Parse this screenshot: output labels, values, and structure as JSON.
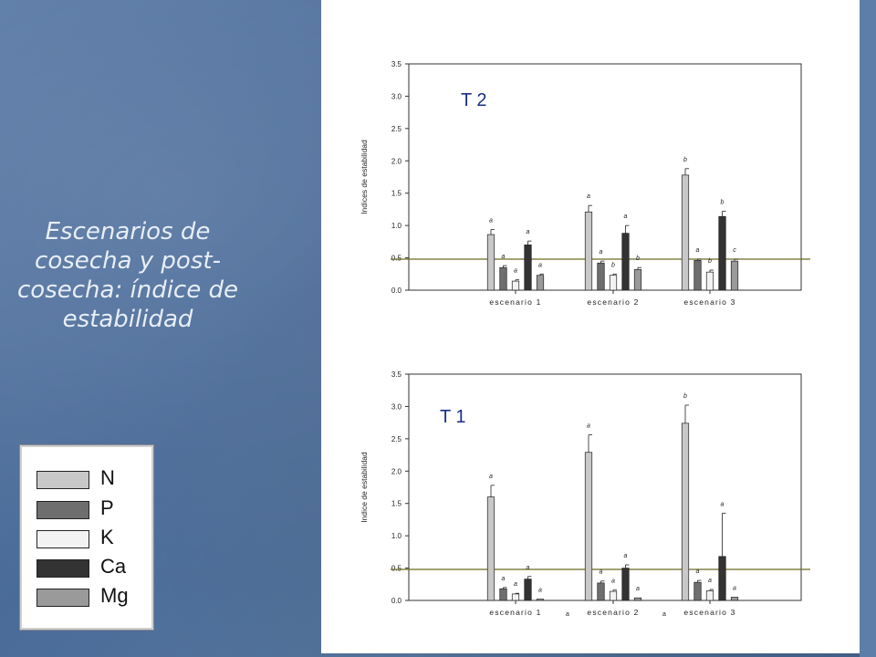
{
  "slide": {
    "title": "Escenarios de cosecha y post-cosecha: índice de estabilidad",
    "background_color": "#4f6f9c"
  },
  "legend": {
    "items": [
      {
        "label": "N",
        "color": "#c8c8c8"
      },
      {
        "label": "P",
        "color": "#6e6e6e"
      },
      {
        "label": "K",
        "color": "#f2f2f2"
      },
      {
        "label": "Ca",
        "color": "#333333"
      },
      {
        "label": "Mg",
        "color": "#9a9a9a"
      }
    ]
  },
  "chart_data": [
    {
      "type": "bar",
      "panel_label": "T 2",
      "ylabel": "Indices de estabilidad",
      "ylim": [
        0,
        3.5
      ],
      "yticks": [
        "0.0",
        "0.5",
        "1.0",
        "1.5",
        "2.0",
        "2.5",
        "3.0",
        "3.5"
      ],
      "reference_line": 0.48,
      "categories": [
        "escenario 1",
        "escenario 2",
        "escenario 3"
      ],
      "series": [
        {
          "name": "N",
          "values": [
            0.86,
            1.21,
            1.78
          ],
          "errors": [
            0.08,
            0.1,
            0.1
          ],
          "letters": [
            "a",
            "a",
            "b"
          ]
        },
        {
          "name": "P",
          "values": [
            0.35,
            0.42,
            0.46
          ],
          "errors": [
            0.03,
            0.03,
            0.02
          ],
          "letters": [
            "a",
            "a",
            "a"
          ]
        },
        {
          "name": "K",
          "values": [
            0.14,
            0.23,
            0.28
          ],
          "errors": [
            0.02,
            0.02,
            0.03
          ],
          "letters": [
            "a",
            "b",
            "b"
          ]
        },
        {
          "name": "Ca",
          "values": [
            0.7,
            0.88,
            1.14
          ],
          "errors": [
            0.06,
            0.12,
            0.08
          ],
          "letters": [
            "a",
            "a",
            "b"
          ]
        },
        {
          "name": "Mg",
          "values": [
            0.23,
            0.32,
            0.45
          ],
          "errors": [
            0.02,
            0.03,
            0.03
          ],
          "letters": [
            "a",
            "b",
            "c"
          ]
        }
      ]
    },
    {
      "type": "bar",
      "panel_label": "T 1",
      "ylabel": "Indice de estabilidad",
      "ylim": [
        0,
        3.5
      ],
      "yticks": [
        "0.0",
        "0.5",
        "1.0",
        "1.5",
        "2.0",
        "2.5",
        "3.0",
        "3.5"
      ],
      "reference_line": 0.48,
      "categories": [
        "escenario 1",
        "escenario 2",
        "escenario 3"
      ],
      "series": [
        {
          "name": "N",
          "values": [
            1.6,
            2.29,
            2.74
          ],
          "errors": [
            0.18,
            0.27,
            0.28
          ],
          "letters": [
            "a",
            "a",
            "b"
          ]
        },
        {
          "name": "P",
          "values": [
            0.18,
            0.27,
            0.28
          ],
          "errors": [
            0.02,
            0.03,
            0.03
          ],
          "letters": [
            "a",
            "a",
            "a"
          ]
        },
        {
          "name": "K",
          "values": [
            0.1,
            0.14,
            0.15
          ],
          "errors": [
            0.01,
            0.02,
            0.02
          ],
          "letters": [
            "a",
            "a",
            "a"
          ]
        },
        {
          "name": "Ca",
          "values": [
            0.33,
            0.5,
            0.68
          ],
          "errors": [
            0.04,
            0.05,
            0.67
          ],
          "letters": [
            "a",
            "a",
            "a"
          ]
        },
        {
          "name": "Mg",
          "values": [
            0.02,
            0.04,
            0.05
          ],
          "errors": [
            0.0,
            0.0,
            0.0
          ],
          "letters": [
            "a",
            "a",
            "a"
          ]
        }
      ],
      "extra_labels": [
        {
          "category": 1,
          "text": "a"
        },
        {
          "category": 2,
          "text": "a"
        }
      ]
    }
  ]
}
